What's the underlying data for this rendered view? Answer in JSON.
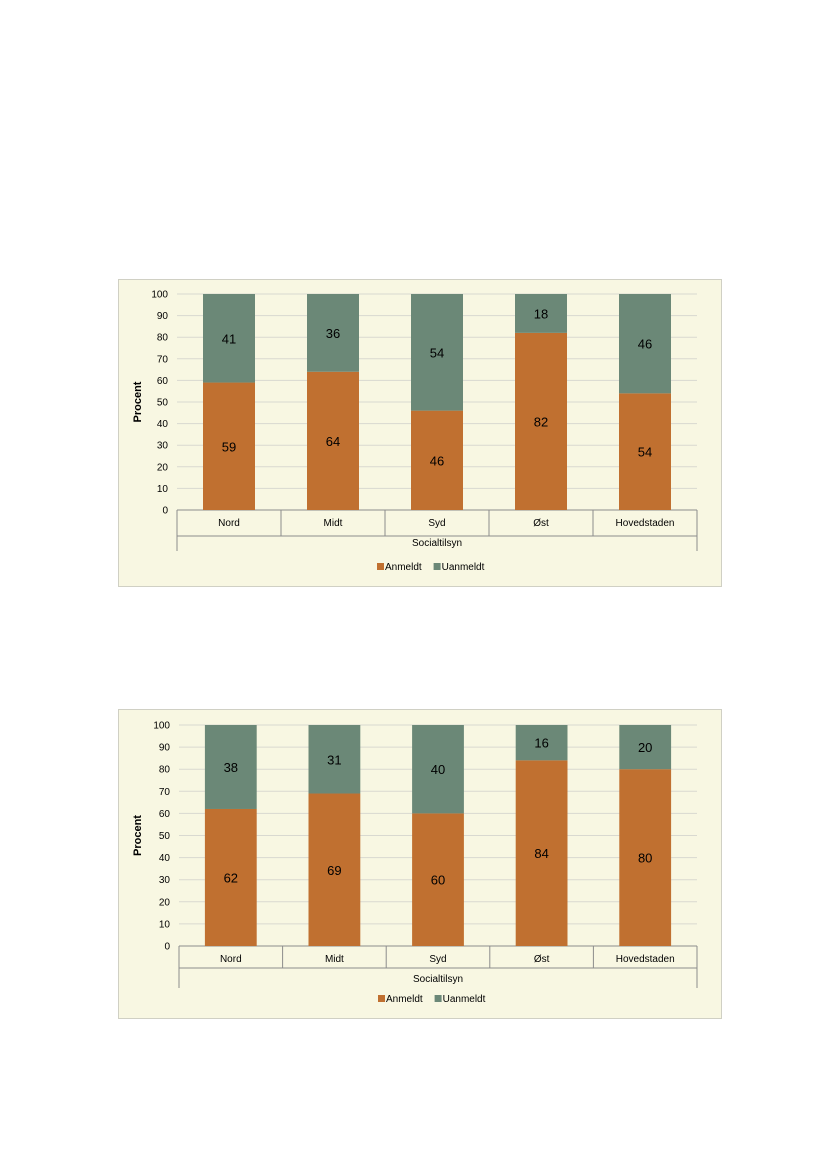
{
  "chart_data": [
    {
      "type": "bar",
      "stacked": true,
      "categories": [
        "Nord",
        "Midt",
        "Syd",
        "Øst",
        "Hovedstaden"
      ],
      "series": [
        {
          "name": "Anmeldt",
          "values": [
            59,
            64,
            46,
            82,
            54
          ],
          "color": "#c07030"
        },
        {
          "name": "Uanmeldt",
          "values": [
            41,
            36,
            54,
            18,
            46
          ],
          "color": "#6b8877"
        }
      ],
      "xlabel": "Socialtilsyn",
      "ylabel": "Procent",
      "ylim": [
        0,
        100
      ],
      "yticks": [
        0,
        10,
        20,
        30,
        40,
        50,
        60,
        70,
        80,
        90,
        100
      ],
      "grid": true,
      "legend": "bottom"
    },
    {
      "type": "bar",
      "stacked": true,
      "categories": [
        "Nord",
        "Midt",
        "Syd",
        "Øst",
        "Hovedstaden"
      ],
      "series": [
        {
          "name": "Anmeldt",
          "values": [
            62,
            69,
            60,
            84,
            80
          ],
          "color": "#c07030"
        },
        {
          "name": "Uanmeldt",
          "values": [
            38,
            31,
            40,
            16,
            20
          ],
          "color": "#6b8877"
        }
      ],
      "xlabel": "Socialtilsyn",
      "ylabel": "Procent",
      "ylim": [
        0,
        100
      ],
      "yticks": [
        0,
        10,
        20,
        30,
        40,
        50,
        60,
        70,
        80,
        90,
        100
      ],
      "grid": true,
      "legend": "bottom"
    }
  ]
}
